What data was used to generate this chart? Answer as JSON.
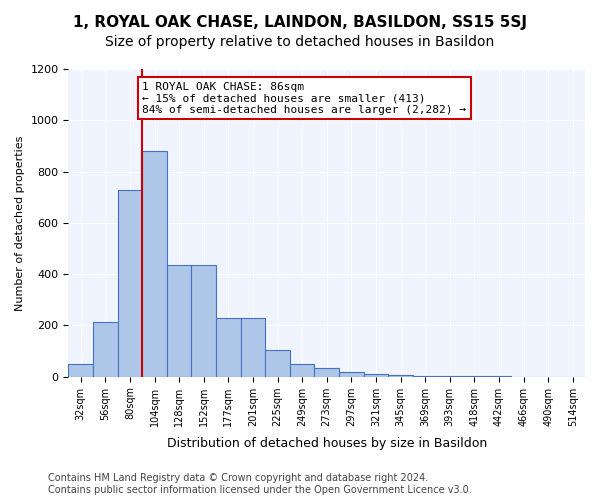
{
  "title": "1, ROYAL OAK CHASE, LAINDON, BASILDON, SS15 5SJ",
  "subtitle": "Size of property relative to detached houses in Basildon",
  "xlabel": "Distribution of detached houses by size in Basildon",
  "ylabel": "Number of detached properties",
  "bar_color": "#aec6e8",
  "bar_edge_color": "#4472c4",
  "categories": [
    "32sqm",
    "56sqm",
    "80sqm",
    "104sqm",
    "128sqm",
    "152sqm",
    "177sqm",
    "201sqm",
    "225sqm",
    "249sqm",
    "273sqm",
    "297sqm",
    "321sqm",
    "345sqm",
    "369sqm",
    "393sqm",
    "418sqm",
    "442sqm",
    "466sqm",
    "490sqm",
    "514sqm"
  ],
  "values": [
    50,
    215,
    730,
    880,
    435,
    435,
    230,
    230,
    105,
    50,
    35,
    20,
    10,
    5,
    3,
    2,
    1,
    1,
    0,
    0,
    0
  ],
  "vline_x": 2,
  "vline_color": "#cc0000",
  "annotation_text": "1 ROYAL OAK CHASE: 86sqm\n← 15% of detached houses are smaller (413)\n84% of semi-detached houses are larger (2,282) →",
  "annotation_box_color": "#ffffff",
  "annotation_box_edge_color": "#cc0000",
  "ylim": [
    0,
    1200
  ],
  "yticks": [
    0,
    200,
    400,
    600,
    800,
    1000,
    1200
  ],
  "background_color": "#f0f4ff",
  "footer": "Contains HM Land Registry data © Crown copyright and database right 2024.\nContains public sector information licensed under the Open Government Licence v3.0.",
  "title_fontsize": 11,
  "subtitle_fontsize": 10,
  "annotation_fontsize": 8,
  "footer_fontsize": 7
}
